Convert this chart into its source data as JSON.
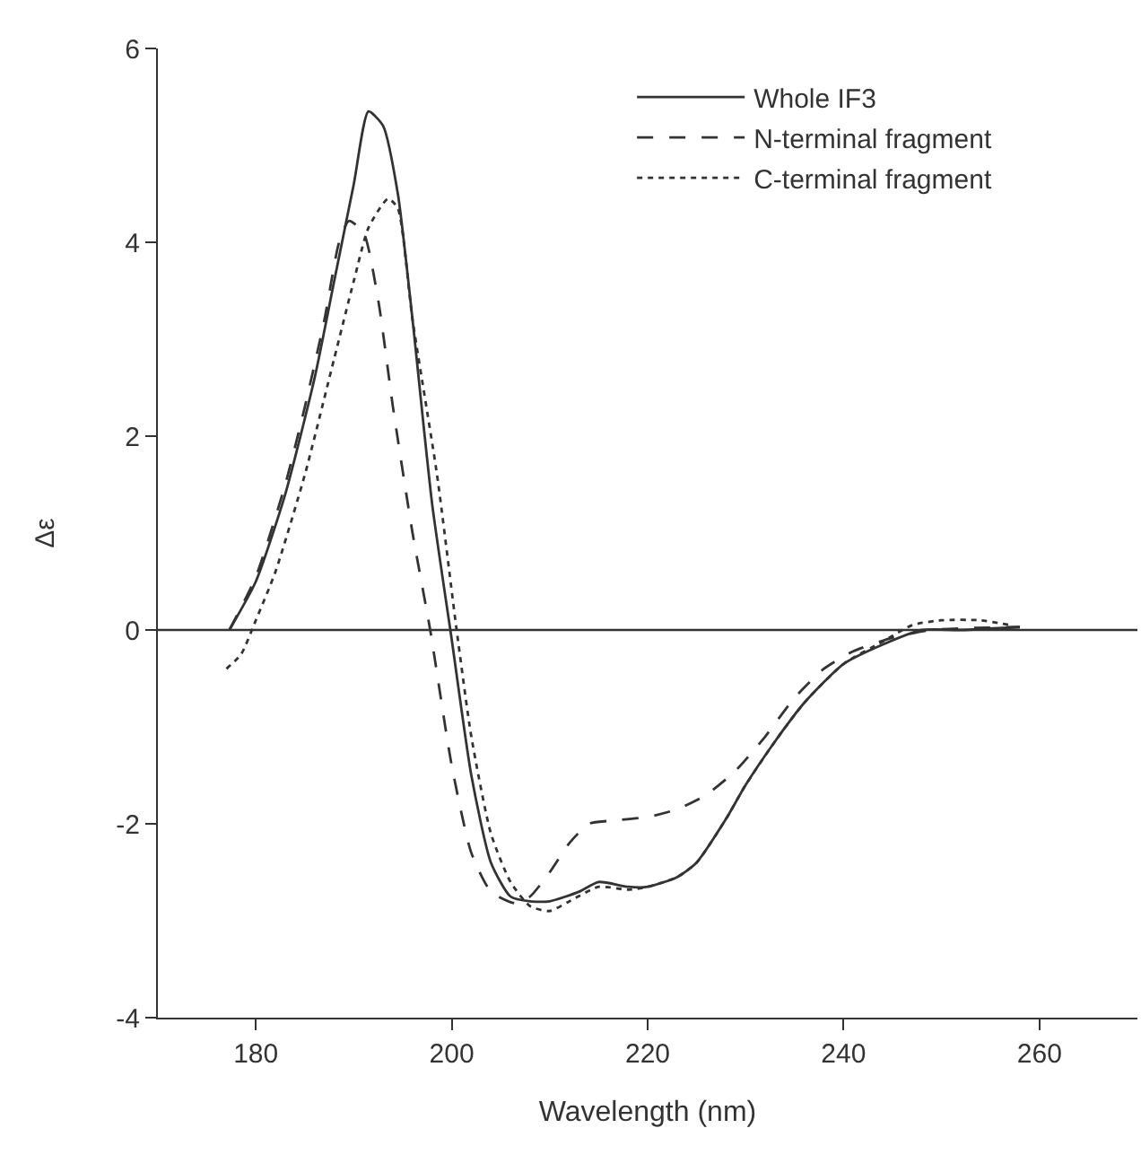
{
  "chart_data": {
    "type": "line",
    "xlabel": "Wavelength (nm)",
    "ylabel": "Δε",
    "xlim": [
      170,
      270
    ],
    "ylim": [
      -4,
      6
    ],
    "xticks": [
      180,
      200,
      220,
      240,
      260
    ],
    "yticks": [
      -4,
      -2,
      0,
      2,
      4,
      6
    ],
    "grid": false,
    "legend": "top right",
    "marker": "none",
    "ref_lines": [
      {
        "axis": "y",
        "value": 0,
        "color": "#333333"
      }
    ],
    "series": [
      {
        "name": "Whole IF3",
        "color": "#333333",
        "line_style": "solid",
        "x": [
          177.3,
          180,
          183,
          186,
          188,
          190,
          191.5,
          193,
          194.5,
          196,
          198,
          200,
          202,
          204,
          206,
          208,
          210,
          213,
          215,
          218,
          220,
          223,
          225,
          228,
          230,
          233,
          236,
          240,
          244,
          248,
          252,
          258
        ],
        "values": [
          0,
          0.5,
          1.4,
          2.6,
          3.6,
          4.6,
          5.35,
          5.2,
          4.5,
          3.2,
          1.3,
          -0.1,
          -1.5,
          -2.4,
          -2.75,
          -2.8,
          -2.8,
          -2.7,
          -2.6,
          -2.65,
          -2.65,
          -2.55,
          -2.4,
          -1.95,
          -1.6,
          -1.15,
          -0.75,
          -0.35,
          -0.15,
          0,
          0,
          0.03
        ]
      },
      {
        "name": "N-terminal fragment",
        "color": "#333333",
        "line_style": "dashed",
        "x": [
          177.3,
          180,
          183,
          185,
          187,
          188.5,
          189.5,
          191,
          192.5,
          194,
          196,
          197.8,
          200,
          202,
          204,
          206.5,
          208,
          210,
          212,
          214,
          216,
          220,
          223,
          226,
          229,
          232,
          235,
          238,
          241,
          245,
          249,
          253,
          258
        ],
        "values": [
          0,
          0.55,
          1.5,
          2.3,
          3.2,
          4.0,
          4.22,
          4.1,
          3.4,
          2.3,
          1.0,
          0,
          -1.4,
          -2.3,
          -2.7,
          -2.82,
          -2.75,
          -2.5,
          -2.2,
          -2.0,
          -1.97,
          -1.93,
          -1.85,
          -1.7,
          -1.45,
          -1.1,
          -0.7,
          -0.4,
          -0.22,
          -0.08,
          0,
          0.02,
          0.03
        ]
      },
      {
        "name": "C-terminal fragment",
        "color": "#333333",
        "line_style": "dotted",
        "x": [
          177,
          178.5,
          180,
          182,
          185,
          188,
          190,
          191.5,
          193.5,
          194.5,
          196,
          198.5,
          200.5,
          202,
          204,
          206,
          208,
          210,
          212,
          215,
          218,
          220,
          223,
          225,
          228,
          230,
          233,
          236,
          240,
          244,
          247,
          250,
          254,
          257
        ],
        "values": [
          -0.4,
          -0.25,
          0.1,
          0.6,
          1.6,
          2.8,
          3.6,
          4.15,
          4.45,
          4.35,
          3.2,
          1.6,
          0,
          -1.1,
          -2.1,
          -2.6,
          -2.85,
          -2.9,
          -2.8,
          -2.65,
          -2.68,
          -2.65,
          -2.55,
          -2.4,
          -1.95,
          -1.6,
          -1.15,
          -0.75,
          -0.35,
          -0.12,
          0.05,
          0.1,
          0.1,
          0.05
        ]
      }
    ]
  }
}
